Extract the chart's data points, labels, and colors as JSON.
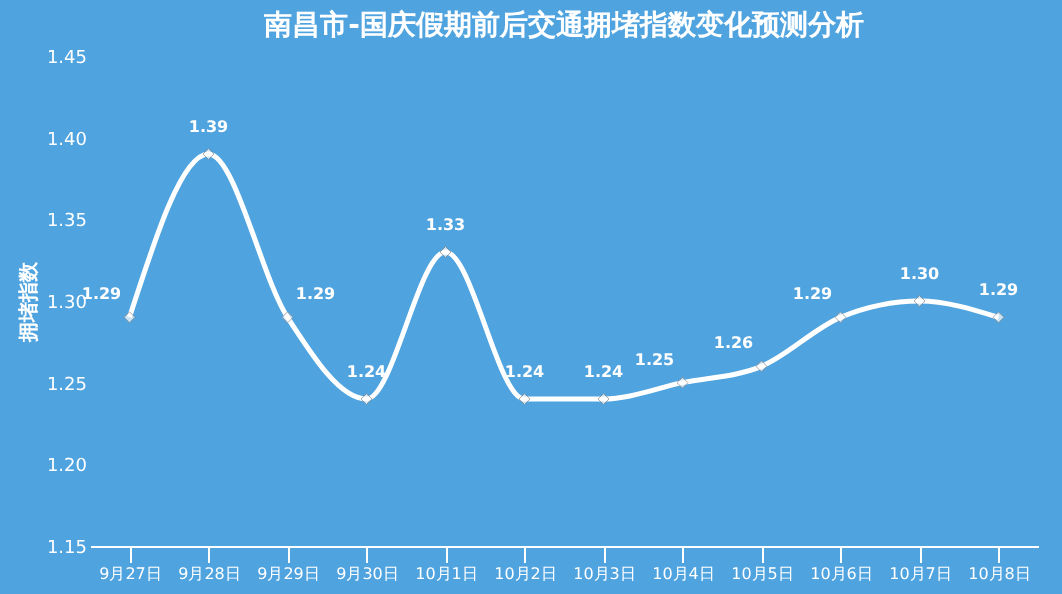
{
  "chart_data": {
    "type": "line",
    "title": "南昌市-国庆假期前后交通拥堵指数变化预测分析",
    "ylabel": "拥堵指数",
    "categories": [
      "9月27日",
      "9月28日",
      "9月29日",
      "9月30日",
      "10月1日",
      "10月2日",
      "10月3日",
      "10月4日",
      "10月5日",
      "10月6日",
      "10月7日",
      "10月8日"
    ],
    "series": [
      {
        "color": "#ffffff",
        "values": [
          1.29,
          1.39,
          1.29,
          1.24,
          1.33,
          1.24,
          1.24,
          1.25,
          1.26,
          1.29,
          1.3,
          1.29
        ],
        "value_labels": [
          "1.29",
          "1.39",
          "1.29",
          "1.24",
          "1.33",
          "1.24",
          "1.24",
          "1.25",
          "1.26",
          "1.29",
          "1.30",
          "1.29"
        ]
      }
    ],
    "ylim": [
      1.15,
      1.45
    ],
    "yticks": [
      {
        "value": 1.15,
        "label": "1.15"
      },
      {
        "value": 1.2,
        "label": "1.20"
      },
      {
        "value": 1.25,
        "label": "1.25"
      },
      {
        "value": 1.3,
        "label": "1.30"
      },
      {
        "value": 1.35,
        "label": "1.35"
      },
      {
        "value": 1.4,
        "label": "1.40"
      },
      {
        "value": 1.45,
        "label": "1.45"
      }
    ],
    "marker": "diamond",
    "line_style": "solid",
    "grid": false
  }
}
